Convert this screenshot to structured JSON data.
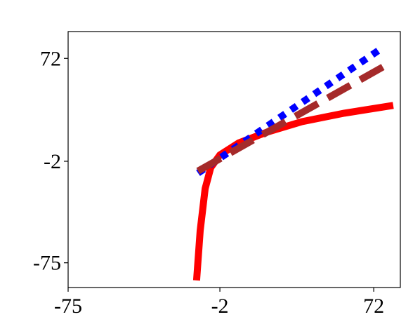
{
  "chart_data": {
    "type": "line",
    "xlim": [
      -75,
      84.8
    ],
    "ylim": [
      -92.8,
      91.3
    ],
    "xticks": [
      -75,
      -2,
      72
    ],
    "yticks": [
      -75,
      -2,
      72
    ],
    "series": [
      {
        "color": "#ff0000",
        "style": "solid",
        "width": 10,
        "x": [
          -13.2,
          -11.5,
          -9.1,
          -6.4,
          -2,
          7.1,
          20.6,
          37.5,
          57.8,
          81.4
        ],
        "values": [
          -87.7,
          -52,
          -21.7,
          -6.5,
          2.6,
          11.2,
          18.9,
          26.5,
          32.6,
          38.2
        ]
      },
      {
        "color": "#0000ff",
        "style": "dotted",
        "width": 10,
        "x": [
          -12.5,
          76.4
        ],
        "values": [
          -10.5,
          79.8
        ]
      },
      {
        "color": "#a52a2a",
        "style": "dashed",
        "width": 10,
        "x": [
          -12.5,
          79.7
        ],
        "values": [
          -9,
          68.6
        ]
      }
    ]
  }
}
